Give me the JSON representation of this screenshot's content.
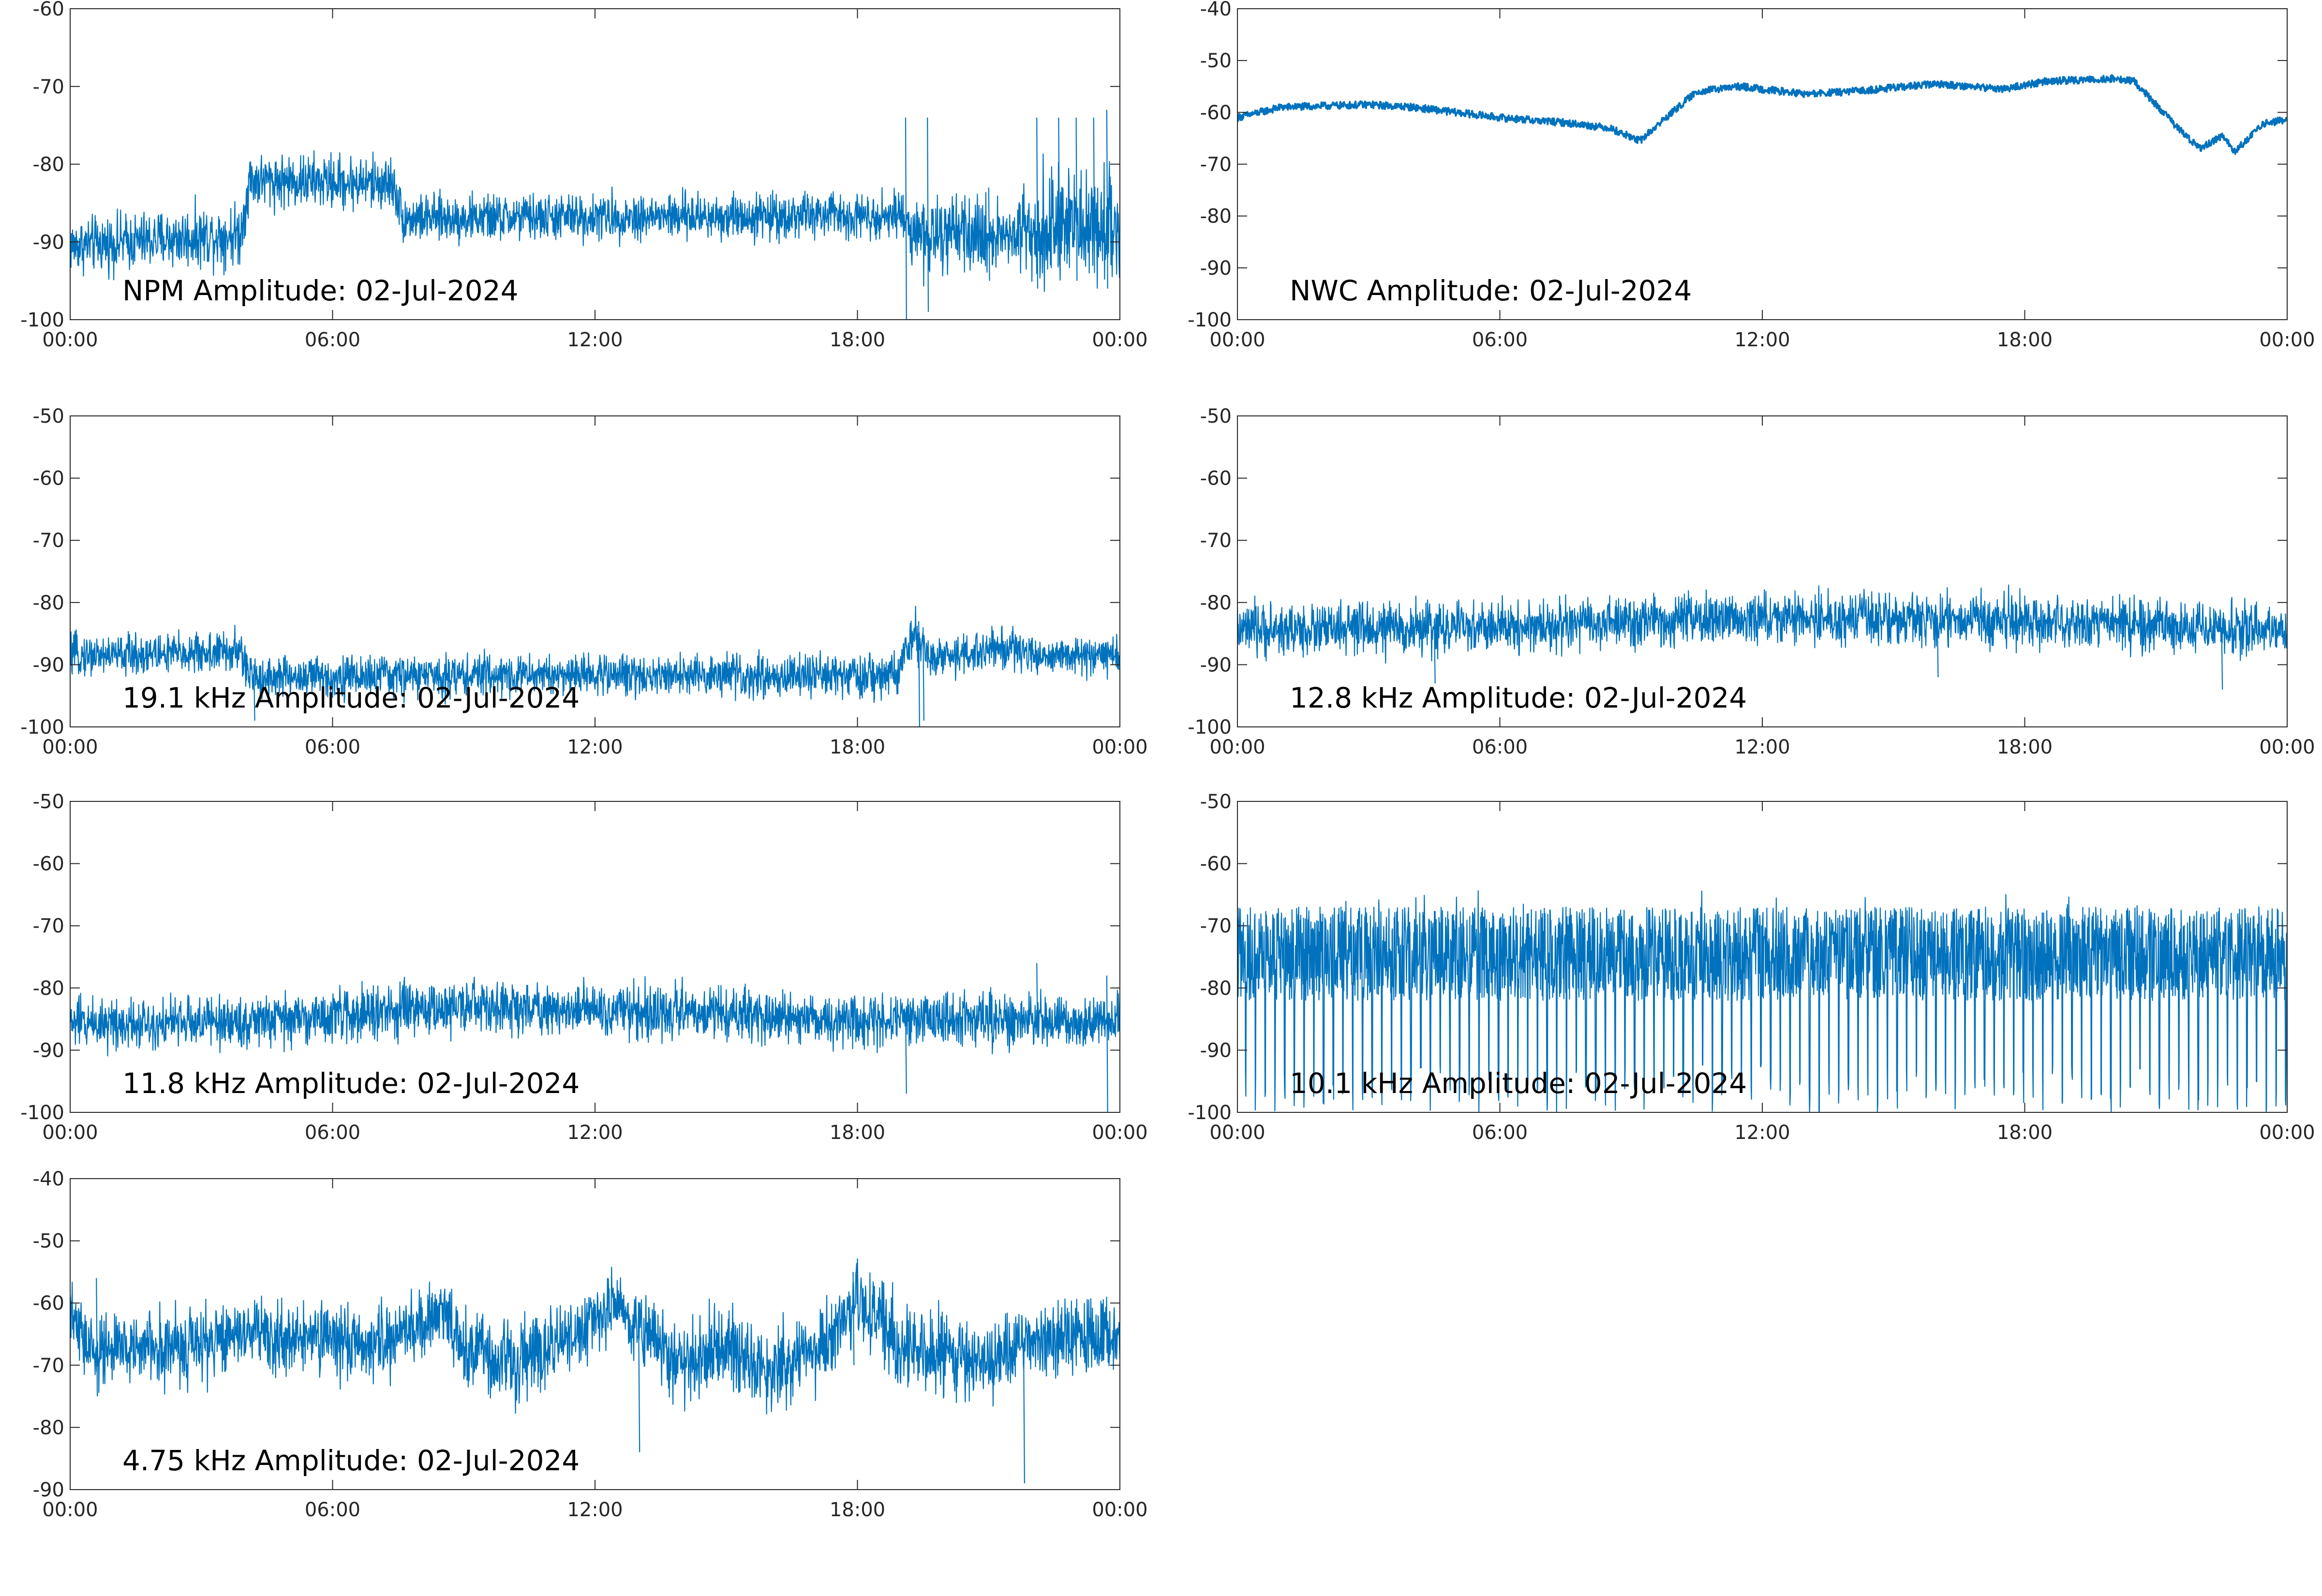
{
  "chart_data": [
    {
      "type": "line",
      "annotation": "NPM Amplitude: 02-Jul-2024",
      "xlim": [
        "00:00",
        "24:00"
      ],
      "x_ticks": [
        "00:00",
        "06:00",
        "12:00",
        "18:00",
        "00:00"
      ],
      "ylim": [
        -100,
        -60
      ],
      "y_ticks": [
        -60,
        -70,
        -80,
        -90,
        -100
      ],
      "grid": false,
      "color": "#0072BD",
      "series": [
        {
          "style": "noise",
          "x_hours": [
            0,
            3.9,
            4.1,
            7.4,
            7.6,
            19.0,
            19.5,
            21.5,
            22.0,
            24.0
          ],
          "center": [
            -90.5,
            -89,
            -82,
            -82.5,
            -87,
            -86.5,
            -89.5,
            -89,
            -88,
            -88
          ],
          "spread": [
            3.5,
            4,
            3.5,
            3.5,
            3,
            3,
            5,
            4.5,
            7,
            7
          ],
          "spikes": [
            [
              19.1,
              -74,
              -100
            ],
            [
              19.6,
              -74,
              -99
            ],
            [
              21.0,
              -83,
              -95
            ],
            [
              22.1,
              -74,
              -96
            ],
            [
              22.6,
              -74,
              -93
            ],
            [
              23.0,
              -74,
              -95
            ],
            [
              23.4,
              -74,
              -94
            ],
            [
              23.7,
              -73,
              -96
            ]
          ]
        }
      ]
    },
    {
      "type": "line",
      "annotation": "NWC Amplitude: 02-Jul-2024",
      "xlim": [
        "00:00",
        "24:00"
      ],
      "x_ticks": [
        "00:00",
        "06:00",
        "12:00",
        "18:00",
        "00:00"
      ],
      "ylim": [
        -100,
        -40
      ],
      "y_ticks": [
        -40,
        -50,
        -60,
        -70,
        -80,
        -90,
        -100
      ],
      "grid": false,
      "color": "#0072BD",
      "series": [
        {
          "style": "smooth",
          "x_hours": [
            0,
            1,
            3,
            4,
            6,
            7.5,
            8.5,
            9.2,
            9.8,
            10.5,
            11.5,
            13,
            14,
            16,
            17.5,
            18.5,
            20,
            20.5,
            21.5,
            22,
            22.5,
            22.8,
            23.5,
            24
          ],
          "values": [
            -61,
            -59,
            -58.5,
            -59,
            -61,
            -62,
            -63,
            -65.5,
            -61,
            -56,
            -55,
            -56.5,
            -56,
            -54.5,
            -55.5,
            -54,
            -53.5,
            -54,
            -63,
            -67,
            -64.5,
            -67.5,
            -62,
            -61.5
          ],
          "spread": 0.7
        }
      ]
    },
    {
      "type": "line",
      "annotation": "19.1 kHz Amplitude: 02-Jul-2024",
      "xlim": [
        "00:00",
        "24:00"
      ],
      "x_ticks": [
        "00:00",
        "06:00",
        "12:00",
        "18:00",
        "00:00"
      ],
      "ylim": [
        -100,
        -50
      ],
      "y_ticks": [
        -50,
        -60,
        -70,
        -80,
        -90,
        -100
      ],
      "grid": false,
      "color": "#0072BD",
      "series": [
        {
          "style": "noise",
          "x_hours": [
            0,
            3.9,
            4.1,
            12,
            18.9,
            19.3,
            19.6,
            20.5,
            21.5,
            22.0,
            24.0
          ],
          "center": [
            -88.5,
            -88,
            -92,
            -91.5,
            -92,
            -85,
            -89,
            -88.5,
            -87,
            -88.5,
            -88.5
          ],
          "spread": [
            3.2,
            3.5,
            3.5,
            3.2,
            3.5,
            4,
            3.5,
            3.5,
            3.5,
            3,
            3
          ],
          "spikes": [
            [
              4.2,
              -90,
              -99
            ],
            [
              19.4,
              -83,
              -100
            ],
            [
              19.5,
              -84,
              -99
            ]
          ]
        }
      ]
    },
    {
      "type": "line",
      "annotation": "12.8 kHz Amplitude: 02-Jul-2024",
      "xlim": [
        "00:00",
        "24:00"
      ],
      "x_ticks": [
        "00:00",
        "06:00",
        "12:00",
        "18:00",
        "00:00"
      ],
      "ylim": [
        -100,
        -50
      ],
      "y_ticks": [
        -50,
        -60,
        -70,
        -80,
        -90,
        -100
      ],
      "grid": false,
      "color": "#0072BD",
      "series": [
        {
          "style": "noise",
          "x_hours": [
            0,
            6,
            12,
            18,
            24
          ],
          "center": [
            -84.5,
            -84,
            -82.5,
            -83,
            -84.5
          ],
          "spread": [
            4.2,
            4.2,
            4.2,
            4.2,
            4.2
          ],
          "spikes": [
            [
              4.5,
              -83,
              -93
            ],
            [
              16,
              -82,
              -92
            ],
            [
              22.5,
              -84,
              -94
            ]
          ]
        }
      ]
    },
    {
      "type": "line",
      "annotation": "11.8 kHz Amplitude: 02-Jul-2024",
      "xlim": [
        "00:00",
        "24:00"
      ],
      "x_ticks": [
        "00:00",
        "06:00",
        "12:00",
        "18:00",
        "00:00"
      ],
      "ylim": [
        -100,
        -50
      ],
      "y_ticks": [
        -50,
        -60,
        -70,
        -80,
        -90,
        -100
      ],
      "grid": false,
      "color": "#0072BD",
      "series": [
        {
          "style": "noise",
          "x_hours": [
            0,
            4,
            9,
            12,
            18,
            24
          ],
          "center": [
            -85.5,
            -85.5,
            -83,
            -83.5,
            -85,
            -85.5
          ],
          "spread": [
            4.2,
            4.2,
            4.2,
            4.2,
            4.2,
            4.2
          ],
          "spikes": [
            [
              19.1,
              -84,
              -97
            ],
            [
              23.7,
              -78,
              -100
            ],
            [
              22.1,
              -76,
              -88
            ]
          ]
        }
      ]
    },
    {
      "type": "line",
      "annotation": "10.1 kHz Amplitude: 02-Jul-2024",
      "xlim": [
        "00:00",
        "24:00"
      ],
      "x_ticks": [
        "00:00",
        "06:00",
        "12:00",
        "18:00",
        "00:00"
      ],
      "ylim": [
        -100,
        -50
      ],
      "y_ticks": [
        -50,
        -60,
        -70,
        -80,
        -90,
        -100
      ],
      "grid": false,
      "color": "#0072BD",
      "series": [
        {
          "style": "comb",
          "x_hours": [
            0,
            24
          ],
          "top": [
            -67,
            -67
          ],
          "bottom": [
            -82,
            -82
          ],
          "dips_per_hour": 4.5,
          "dip_floor": -100
        }
      ]
    },
    {
      "type": "line",
      "annotation": "4.75 kHz Amplitude: 02-Jul-2024",
      "xlim": [
        "00:00",
        "24:00"
      ],
      "x_ticks": [
        "00:00",
        "06:00",
        "12:00",
        "18:00",
        "00:00"
      ],
      "ylim": [
        -90,
        -40
      ],
      "y_ticks": [
        -40,
        -50,
        -60,
        -70,
        -80,
        -90
      ],
      "grid": false,
      "color": "#0072BD",
      "series": [
        {
          "style": "noise",
          "x_hours": [
            0,
            0.5,
            1.5,
            3,
            4,
            5,
            6,
            7,
            8.5,
            9,
            10,
            11,
            12.5,
            13,
            14,
            15,
            16,
            17,
            18,
            19,
            20,
            21,
            22,
            23,
            24
          ],
          "center": [
            -62,
            -68,
            -67,
            -67,
            -64,
            -66,
            -66,
            -67,
            -62,
            -67,
            -70,
            -67,
            -60,
            -64,
            -70,
            -67,
            -71,
            -68,
            -60,
            -67,
            -68,
            -70,
            -66,
            -66,
            -65
          ],
          "spread": [
            5,
            6,
            6,
            6,
            6,
            6,
            6,
            6,
            6,
            7,
            7,
            6,
            5,
            7,
            6,
            7,
            6,
            7,
            6,
            7,
            7,
            6,
            6,
            6,
            6
          ],
          "spikes": [
            [
              13.0,
              -65,
              -84
            ],
            [
              21.8,
              -68,
              -89
            ],
            [
              17.9,
              -55,
              -70
            ],
            [
              0.6,
              -56,
              -75
            ]
          ]
        }
      ]
    }
  ]
}
